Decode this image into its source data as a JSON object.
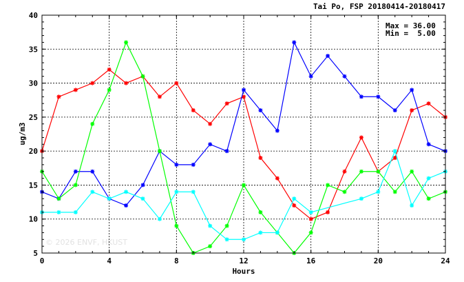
{
  "chart_data": {
    "type": "line",
    "title": "Tai Po, FSP 20180414-20180417",
    "xlabel": "Hours",
    "ylabel": "ug/m3",
    "xlim": [
      0,
      24
    ],
    "ylim": [
      5,
      40
    ],
    "xticks": [
      "0",
      "4",
      "8",
      "12",
      "16",
      "20",
      "24"
    ],
    "yticks": [
      "5",
      "10",
      "15",
      "20",
      "25",
      "30",
      "35",
      "40"
    ],
    "grid": true,
    "stats": {
      "max": "Max = 36.00",
      "min": "Min =  5.00"
    },
    "watermark": "© 2026 ENVF, HKUST",
    "series": [
      {
        "color": "#ff0000",
        "x": [
          0,
          1,
          2,
          3,
          4,
          5,
          6,
          7,
          8,
          9,
          10,
          11,
          12,
          13,
          14,
          15,
          16,
          17,
          18,
          19,
          20,
          21,
          22,
          23,
          24
        ],
        "values": [
          20,
          28,
          29,
          30,
          32,
          30,
          31,
          28,
          30,
          26,
          24,
          27,
          28,
          19,
          16,
          12,
          10,
          11,
          17,
          22,
          17,
          19,
          26,
          27,
          25
        ]
      },
      {
        "color": "#0000ff",
        "x": [
          0,
          1,
          2,
          3,
          4,
          5,
          6,
          7,
          8,
          9,
          10,
          11,
          12,
          13,
          14,
          15,
          16,
          17,
          18,
          19,
          20,
          21,
          22,
          23,
          24
        ],
        "values": [
          14,
          13,
          17,
          17,
          13,
          12,
          15,
          20,
          18,
          18,
          21,
          20,
          29,
          26,
          23,
          36,
          31,
          34,
          31,
          28,
          28,
          26,
          29,
          21,
          20
        ]
      },
      {
        "color": "#00ff00",
        "x": [
          0,
          1,
          2,
          3,
          4,
          5,
          6,
          7,
          8,
          9,
          10,
          11,
          12,
          13,
          14,
          15,
          16,
          17,
          18,
          19,
          20,
          21,
          22,
          23,
          24
        ],
        "values": [
          17,
          13,
          15,
          24,
          29,
          36,
          31,
          20,
          9,
          5,
          6,
          9,
          15,
          11,
          8,
          5,
          8,
          15,
          14,
          17,
          17,
          14,
          17,
          13,
          14
        ]
      },
      {
        "color": "#00ffff",
        "x": [
          0,
          1,
          2,
          3,
          4,
          5,
          6,
          7,
          8,
          9,
          10,
          11,
          12,
          13,
          14,
          15,
          16,
          19,
          20,
          21,
          22,
          23,
          24
        ],
        "values": [
          11,
          11,
          11,
          14,
          13,
          14,
          13,
          10,
          14,
          14,
          9,
          7,
          7,
          8,
          8,
          13,
          11,
          13,
          14,
          20,
          12,
          16,
          17
        ]
      }
    ]
  }
}
